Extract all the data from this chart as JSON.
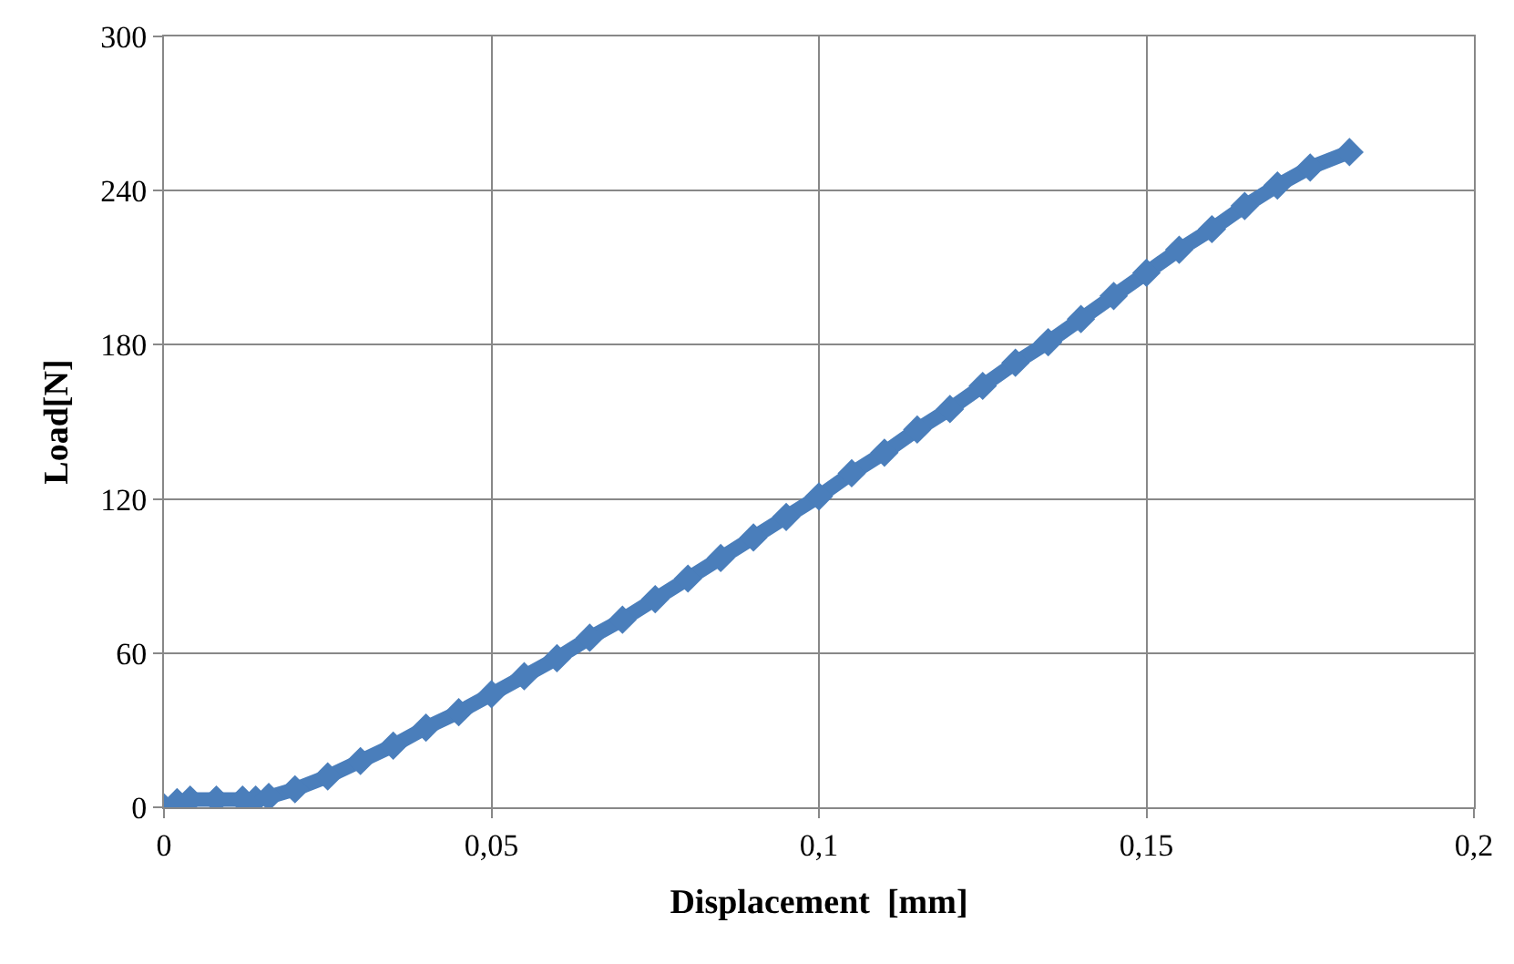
{
  "chart_data": {
    "type": "line",
    "xlabel": "Displacement  [mm]",
    "ylabel": "Load[N]",
    "marker": "diamond",
    "grid": true,
    "xlim": [
      0,
      0.2
    ],
    "xticks": [
      0,
      {
        "value": 0.05,
        "label": "0,05"
      },
      {
        "value": 0.1,
        "label": "0,1"
      },
      {
        "value": 0.15,
        "label": "0,15"
      },
      {
        "value": 0.2,
        "label": "0,2"
      }
    ],
    "ylim": [
      0,
      300
    ],
    "yticks": [
      0,
      60,
      120,
      180,
      240,
      300
    ],
    "series": [
      {
        "color": "#4a7ebb",
        "x": [
          0,
          0.002,
          0.004,
          0.008,
          0.012,
          0.014,
          0.016,
          0.02,
          0.025,
          0.03,
          0.035,
          0.04,
          0.045,
          0.05,
          0.055,
          0.06,
          0.065,
          0.07,
          0.075,
          0.08,
          0.085,
          0.09,
          0.095,
          0.1,
          0.105,
          0.11,
          0.115,
          0.12,
          0.125,
          0.13,
          0.135,
          0.14,
          0.145,
          0.15,
          0.155,
          0.16,
          0.165,
          0.17,
          0.175,
          0.181
        ],
        "values": [
          0,
          2,
          3,
          3,
          3,
          3,
          4,
          7,
          12,
          18,
          24,
          31,
          37,
          44,
          51,
          58,
          66,
          73,
          81,
          89,
          97,
          105,
          113,
          121,
          130,
          138,
          147,
          155,
          164,
          173,
          181,
          190,
          199,
          208,
          217,
          225,
          234,
          242,
          249,
          255
        ]
      }
    ]
  }
}
